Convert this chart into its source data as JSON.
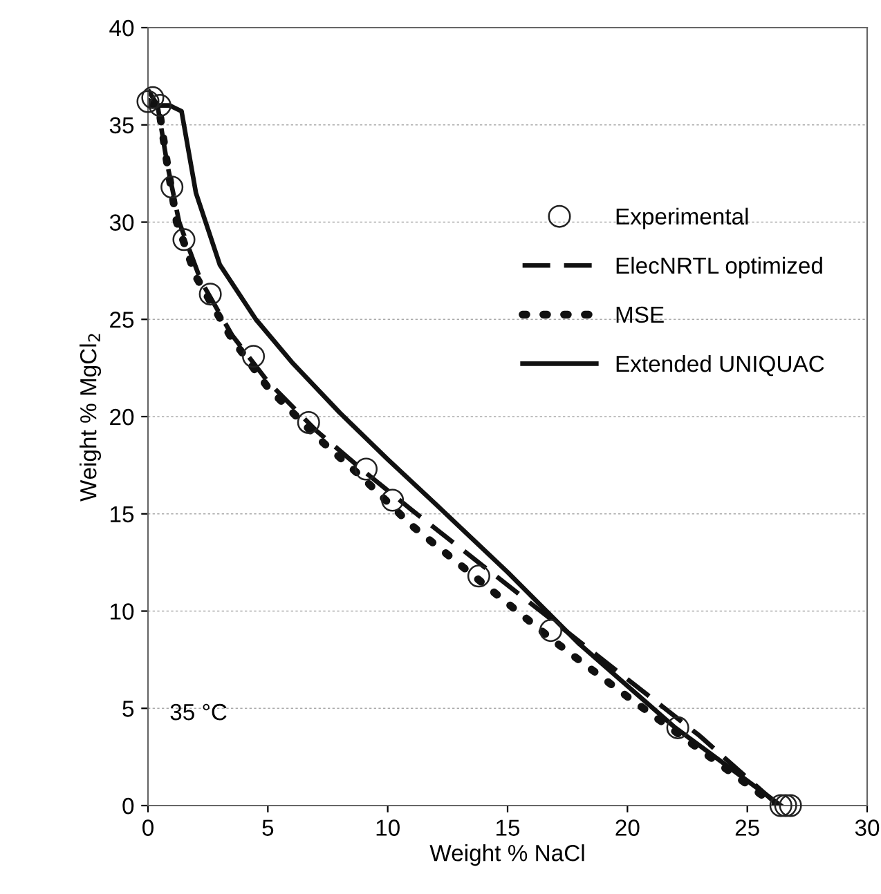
{
  "chart_data": {
    "type": "line",
    "xlabel": "Weight % NaCl",
    "ylabel": "Weight % MgCl$_{2}$",
    "xlim": [
      0,
      30
    ],
    "ylim": [
      0,
      40
    ],
    "xticks": [
      0,
      5,
      10,
      15,
      20,
      25,
      30
    ],
    "yticks": [
      0,
      5,
      10,
      15,
      20,
      25,
      30,
      35,
      40
    ],
    "grid": "y",
    "legend": "right",
    "annotations": [
      "35 °C"
    ],
    "series": [
      {
        "name": "Experimental",
        "type": "scatter",
        "marker": "circle",
        "color": "#222222",
        "x": [
          0,
          0.2,
          0.5,
          1.0,
          1.5,
          2.6,
          4.4,
          6.7,
          9.1,
          10.2,
          13.8,
          16.8,
          22.1,
          26.4,
          26.6,
          26.8
        ],
        "values": [
          36.2,
          36.4,
          36.0,
          31.8,
          29.1,
          26.3,
          23.1,
          19.7,
          17.3,
          15.7,
          11.8,
          9.0,
          4.0,
          0,
          0,
          0
        ]
      },
      {
        "name": "ElecNRTL optimized",
        "line_style": "dashed",
        "color": "#111111",
        "x": [
          0,
          0.4,
          0.8,
          1.3,
          2.2,
          3.5,
          5,
          7,
          9,
          11,
          14,
          17,
          20,
          23,
          26.3
        ],
        "values": [
          36.8,
          36,
          33,
          30,
          27,
          24.2,
          21.8,
          19.3,
          17.2,
          15.2,
          12.3,
          9.4,
          6.5,
          3.6,
          0
        ]
      },
      {
        "name": "MSE",
        "line_style": "dotted",
        "color": "#111111",
        "x": [
          0,
          0.5,
          0.8,
          1.2,
          2,
          3.5,
          5,
          7,
          9,
          11,
          14,
          17,
          20,
          23,
          26.2
        ],
        "values": [
          36.2,
          35.5,
          33,
          30,
          27.2,
          24,
          21.5,
          19,
          16.8,
          14.4,
          11.4,
          8.4,
          5.6,
          2.9,
          0
        ]
      },
      {
        "name": "Extended UNIQUAC",
        "line_style": "solid",
        "color": "#111111",
        "x": [
          0,
          0.9,
          1.4,
          2,
          3,
          4.5,
          6,
          8,
          10,
          12,
          15,
          18,
          22,
          26.4
        ],
        "values": [
          36.0,
          36,
          35.7,
          31.5,
          27.8,
          25,
          22.8,
          20.2,
          17.8,
          15.5,
          12.0,
          8.3,
          4.0,
          0
        ]
      }
    ]
  }
}
